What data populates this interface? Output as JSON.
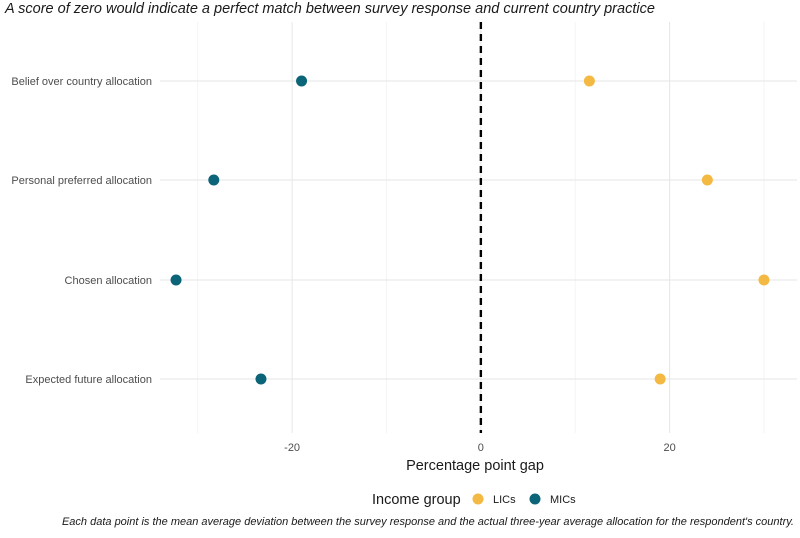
{
  "subtitle": "A score of zero would indicate a perfect match between survey response and current country practice",
  "caption": "Each data point is the mean average deviation between the survey response and the actual three-year average allocation for the respondent's country.",
  "chart_data": {
    "type": "scatter",
    "xlabel": "Percentage point gap",
    "ylabel": "",
    "xlim": [
      -34,
      33.5
    ],
    "x_ticks": [
      -20,
      0,
      20
    ],
    "x_tick_labels": [
      "-20",
      "0",
      "20"
    ],
    "categories": [
      "Belief over country allocation",
      "Personal preferred allocation",
      "Chosen allocation",
      "Expected future allocation"
    ],
    "reference_line": {
      "x": 0,
      "style": "dashed"
    },
    "grid": true,
    "legend": {
      "title": "Income group",
      "position": "bottom"
    },
    "series": [
      {
        "name": "LICs",
        "color": "#F4B942",
        "values": [
          11.5,
          24,
          30,
          19
        ]
      },
      {
        "name": "MICs",
        "color": "#0B6477",
        "values": [
          -19,
          -28.3,
          -32.3,
          -23.3
        ]
      }
    ]
  }
}
